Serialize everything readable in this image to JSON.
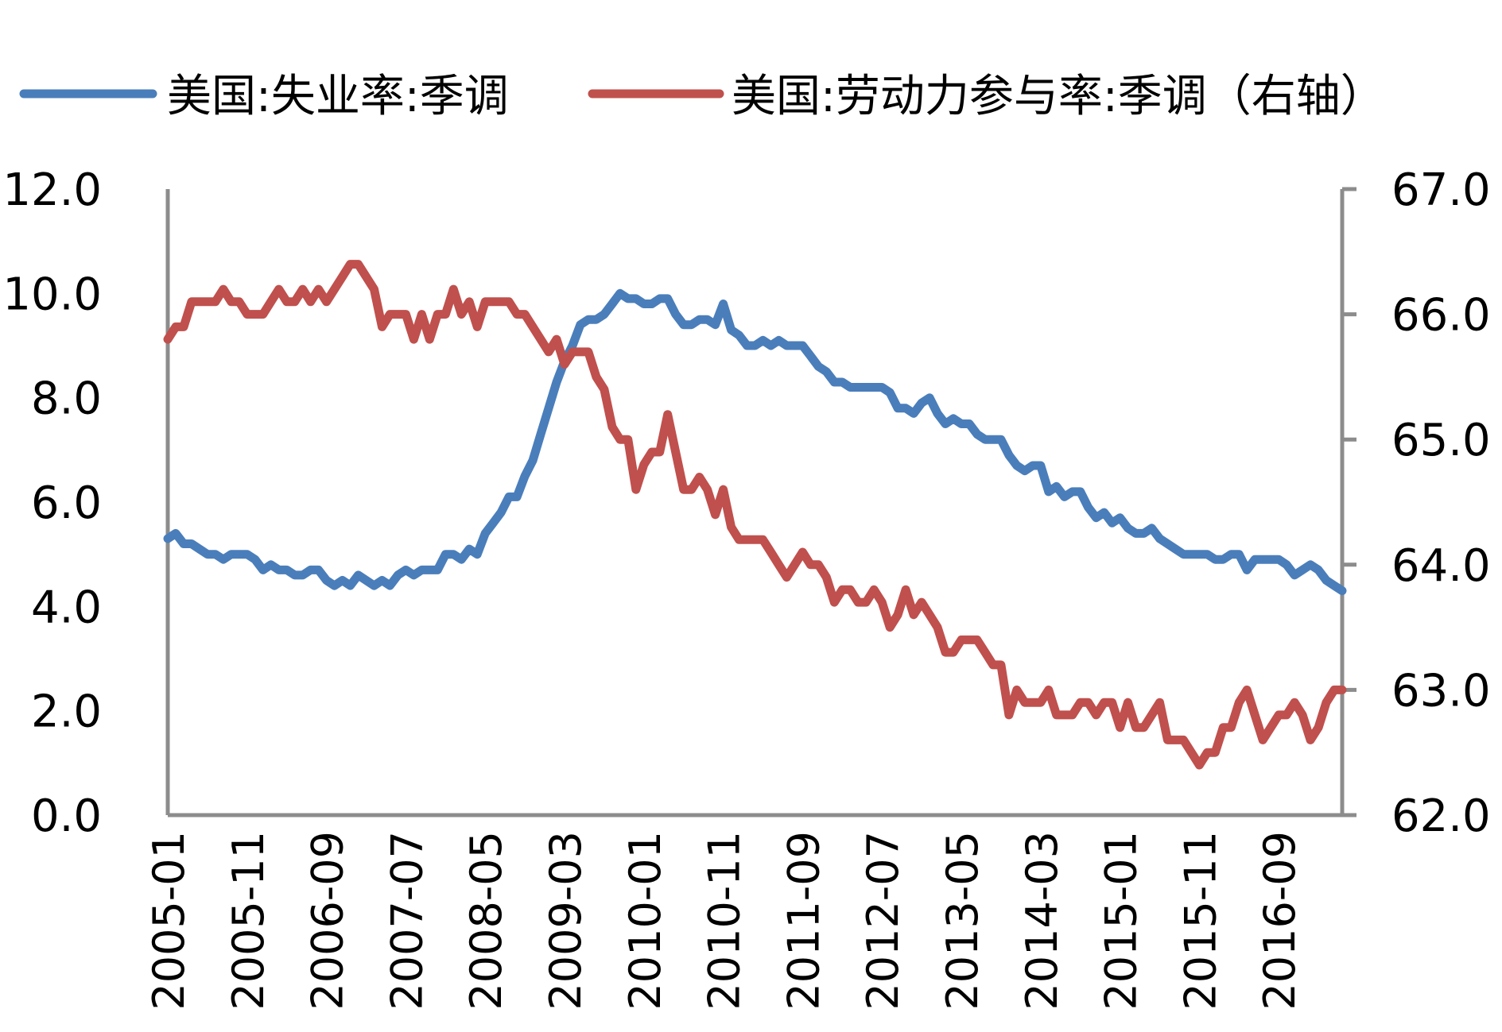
{
  "chart_data": {
    "type": "line",
    "legend_position": "top",
    "grid": false,
    "x": [
      "2005-01",
      "2005-02",
      "2005-03",
      "2005-04",
      "2005-05",
      "2005-06",
      "2005-07",
      "2005-08",
      "2005-09",
      "2005-10",
      "2005-11",
      "2005-12",
      "2006-01",
      "2006-02",
      "2006-03",
      "2006-04",
      "2006-05",
      "2006-06",
      "2006-07",
      "2006-08",
      "2006-09",
      "2006-10",
      "2006-11",
      "2006-12",
      "2007-01",
      "2007-02",
      "2007-03",
      "2007-04",
      "2007-05",
      "2007-06",
      "2007-07",
      "2007-08",
      "2007-09",
      "2007-10",
      "2007-11",
      "2007-12",
      "2008-01",
      "2008-02",
      "2008-03",
      "2008-04",
      "2008-05",
      "2008-06",
      "2008-07",
      "2008-08",
      "2008-09",
      "2008-10",
      "2008-11",
      "2008-12",
      "2009-01",
      "2009-02",
      "2009-03",
      "2009-04",
      "2009-05",
      "2009-06",
      "2009-07",
      "2009-08",
      "2009-09",
      "2009-10",
      "2009-11",
      "2009-12",
      "2010-01",
      "2010-02",
      "2010-03",
      "2010-04",
      "2010-05",
      "2010-06",
      "2010-07",
      "2010-08",
      "2010-09",
      "2010-10",
      "2010-11",
      "2010-12",
      "2011-01",
      "2011-02",
      "2011-03",
      "2011-04",
      "2011-05",
      "2011-06",
      "2011-07",
      "2011-08",
      "2011-09",
      "2011-10",
      "2011-11",
      "2011-12",
      "2012-01",
      "2012-02",
      "2012-03",
      "2012-04",
      "2012-05",
      "2012-06",
      "2012-07",
      "2012-08",
      "2012-09",
      "2012-10",
      "2012-11",
      "2012-12",
      "2013-01",
      "2013-02",
      "2013-03",
      "2013-04",
      "2013-05",
      "2013-06",
      "2013-07",
      "2013-08",
      "2013-09",
      "2013-10",
      "2013-11",
      "2013-12",
      "2014-01",
      "2014-02",
      "2014-03",
      "2014-04",
      "2014-05",
      "2014-06",
      "2014-07",
      "2014-08",
      "2014-09",
      "2014-10",
      "2014-11",
      "2014-12",
      "2015-01",
      "2015-02",
      "2015-03",
      "2015-04",
      "2015-05",
      "2015-06",
      "2015-07",
      "2015-08",
      "2015-09",
      "2015-10",
      "2015-11",
      "2015-12",
      "2016-01",
      "2016-02",
      "2016-03",
      "2016-04",
      "2016-05",
      "2016-06",
      "2016-07",
      "2016-08",
      "2016-09",
      "2016-10",
      "2016-11",
      "2016-12",
      "2017-01",
      "2017-02",
      "2017-03",
      "2017-04",
      "2017-05"
    ],
    "x_tick_labels": [
      "2005-01",
      "2005-11",
      "2006-09",
      "2007-07",
      "2008-05",
      "2009-03",
      "2010-01",
      "2010-11",
      "2011-09",
      "2012-07",
      "2013-05",
      "2014-03",
      "2015-01",
      "2015-11",
      "2016-09"
    ],
    "left_axis": {
      "ylim": [
        0,
        12
      ],
      "ticks": [
        "0.0",
        "2.0",
        "4.0",
        "6.0",
        "8.0",
        "10.0",
        "12.0"
      ]
    },
    "right_axis": {
      "ylim": [
        62,
        67
      ],
      "ticks": [
        "62.0",
        "63.0",
        "64.0",
        "65.0",
        "66.0",
        "67.0"
      ]
    },
    "series": [
      {
        "name": "美国:失业率:季调",
        "axis": "left",
        "color": "#4A7EBB",
        "values": [
          5.3,
          5.4,
          5.2,
          5.2,
          5.1,
          5.0,
          5.0,
          4.9,
          5.0,
          5.0,
          5.0,
          4.9,
          4.7,
          4.8,
          4.7,
          4.7,
          4.6,
          4.6,
          4.7,
          4.7,
          4.5,
          4.4,
          4.5,
          4.4,
          4.6,
          4.5,
          4.4,
          4.5,
          4.4,
          4.6,
          4.7,
          4.6,
          4.7,
          4.7,
          4.7,
          5.0,
          5.0,
          4.9,
          5.1,
          5.0,
          5.4,
          5.6,
          5.8,
          6.1,
          6.1,
          6.5,
          6.8,
          7.3,
          7.8,
          8.3,
          8.7,
          9.0,
          9.4,
          9.5,
          9.5,
          9.6,
          9.8,
          10.0,
          9.9,
          9.9,
          9.8,
          9.8,
          9.9,
          9.9,
          9.6,
          9.4,
          9.4,
          9.5,
          9.5,
          9.4,
          9.8,
          9.3,
          9.2,
          9.0,
          9.0,
          9.1,
          9.0,
          9.1,
          9.0,
          9.0,
          9.0,
          8.8,
          8.6,
          8.5,
          8.3,
          8.3,
          8.2,
          8.2,
          8.2,
          8.2,
          8.2,
          8.1,
          7.8,
          7.8,
          7.7,
          7.9,
          8.0,
          7.7,
          7.5,
          7.6,
          7.5,
          7.5,
          7.3,
          7.2,
          7.2,
          7.2,
          6.9,
          6.7,
          6.6,
          6.7,
          6.7,
          6.2,
          6.3,
          6.1,
          6.2,
          6.2,
          5.9,
          5.7,
          5.8,
          5.6,
          5.7,
          5.5,
          5.4,
          5.4,
          5.5,
          5.3,
          5.2,
          5.1,
          5.0,
          5.0,
          5.0,
          5.0,
          4.9,
          4.9,
          5.0,
          5.0,
          4.7,
          4.9,
          4.9,
          4.9,
          4.9,
          4.8,
          4.6,
          4.7,
          4.8,
          4.7,
          4.5,
          4.4,
          4.3
        ]
      },
      {
        "name": "美国:劳动力参与率:季调（右轴）",
        "axis": "right",
        "color": "#C0504D",
        "values": [
          65.8,
          65.9,
          65.9,
          66.1,
          66.1,
          66.1,
          66.1,
          66.2,
          66.1,
          66.1,
          66.0,
          66.0,
          66.0,
          66.1,
          66.2,
          66.1,
          66.1,
          66.2,
          66.1,
          66.2,
          66.1,
          66.2,
          66.3,
          66.4,
          66.4,
          66.3,
          66.2,
          65.9,
          66.0,
          66.0,
          66.0,
          65.8,
          66.0,
          65.8,
          66.0,
          66.0,
          66.2,
          66.0,
          66.1,
          65.9,
          66.1,
          66.1,
          66.1,
          66.1,
          66.0,
          66.0,
          65.9,
          65.8,
          65.7,
          65.8,
          65.6,
          65.7,
          65.7,
          65.7,
          65.5,
          65.4,
          65.1,
          65.0,
          65.0,
          64.6,
          64.8,
          64.9,
          64.9,
          65.2,
          64.9,
          64.6,
          64.6,
          64.7,
          64.6,
          64.4,
          64.6,
          64.3,
          64.2,
          64.2,
          64.2,
          64.2,
          64.1,
          64.0,
          63.9,
          64.0,
          64.1,
          64.0,
          64.0,
          63.9,
          63.7,
          63.8,
          63.8,
          63.7,
          63.7,
          63.8,
          63.7,
          63.5,
          63.6,
          63.8,
          63.6,
          63.7,
          63.6,
          63.5,
          63.3,
          63.3,
          63.4,
          63.4,
          63.4,
          63.3,
          63.2,
          63.2,
          62.8,
          63.0,
          62.9,
          62.9,
          62.9,
          63.0,
          62.8,
          62.8,
          62.8,
          62.9,
          62.9,
          62.8,
          62.9,
          62.9,
          62.7,
          62.9,
          62.7,
          62.7,
          62.8,
          62.9,
          62.6,
          62.6,
          62.6,
          62.5,
          62.4,
          62.5,
          62.5,
          62.7,
          62.7,
          62.9,
          63.0,
          62.8,
          62.6,
          62.7,
          62.8,
          62.8,
          62.9,
          62.8,
          62.6,
          62.7,
          62.9,
          63.0,
          63.0
        ]
      }
    ]
  }
}
